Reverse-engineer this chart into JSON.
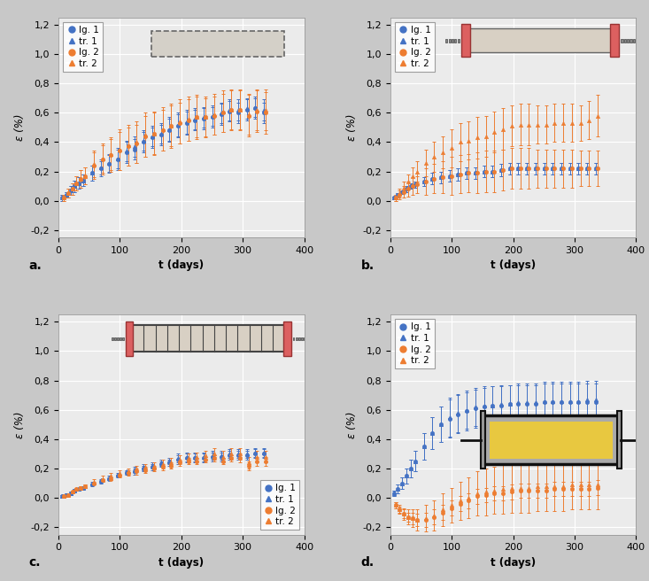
{
  "subplots": [
    "a.",
    "b.",
    "c.",
    "d."
  ],
  "blue_color": "#4472C4",
  "orange_color": "#ED7D31",
  "bg_color": "#EBEBEB",
  "grid_color": "#FFFFFF",
  "xlabel": "t (days)",
  "ylabel": "ε (%)",
  "xlim": [
    0,
    400
  ],
  "ylim": [
    -0.25,
    1.25
  ],
  "ytick_vals": [
    -0.2,
    0.0,
    0.2,
    0.4,
    0.6,
    0.8,
    1.0,
    1.2
  ],
  "ytick_labels": [
    "-0,2",
    "0,0",
    "0,2",
    "0,4",
    "0,6",
    "0,8",
    "1,0",
    "1,2"
  ],
  "xtick_vals": [
    0,
    100,
    200,
    300,
    400
  ],
  "xtick_labels": [
    "0",
    "100",
    "200",
    "300",
    "400"
  ],
  "panel_a": {
    "x": [
      7,
      14,
      21,
      28,
      35,
      42,
      56,
      70,
      84,
      98,
      112,
      126,
      140,
      154,
      168,
      182,
      196,
      210,
      224,
      238,
      252,
      266,
      280,
      294,
      308,
      322,
      336
    ],
    "lg1_y": [
      0.02,
      0.04,
      0.07,
      0.1,
      0.12,
      0.14,
      0.19,
      0.22,
      0.25,
      0.28,
      0.33,
      0.35,
      0.4,
      0.43,
      0.45,
      0.48,
      0.51,
      0.53,
      0.55,
      0.56,
      0.57,
      0.59,
      0.61,
      0.6,
      0.62,
      0.63,
      0.6
    ],
    "lg1_err": [
      0.02,
      0.02,
      0.03,
      0.04,
      0.04,
      0.04,
      0.05,
      0.05,
      0.06,
      0.07,
      0.07,
      0.07,
      0.07,
      0.07,
      0.07,
      0.08,
      0.08,
      0.08,
      0.07,
      0.07,
      0.07,
      0.07,
      0.07,
      0.07,
      0.07,
      0.07,
      0.07
    ],
    "tr1_y": [
      0.02,
      0.04,
      0.07,
      0.1,
      0.12,
      0.14,
      0.19,
      0.23,
      0.26,
      0.29,
      0.34,
      0.37,
      0.41,
      0.44,
      0.46,
      0.49,
      0.52,
      0.54,
      0.56,
      0.57,
      0.58,
      0.6,
      0.62,
      0.62,
      0.63,
      0.64,
      0.62
    ],
    "tr1_err": [
      0.02,
      0.02,
      0.03,
      0.04,
      0.04,
      0.04,
      0.05,
      0.05,
      0.06,
      0.07,
      0.07,
      0.07,
      0.07,
      0.07,
      0.07,
      0.08,
      0.08,
      0.08,
      0.07,
      0.07,
      0.07,
      0.07,
      0.07,
      0.07,
      0.07,
      0.07,
      0.07
    ],
    "lg2_y": [
      0.02,
      0.05,
      0.08,
      0.12,
      0.15,
      0.17,
      0.24,
      0.28,
      0.31,
      0.34,
      0.37,
      0.39,
      0.44,
      0.46,
      0.48,
      0.51,
      0.53,
      0.55,
      0.57,
      0.57,
      0.58,
      0.6,
      0.62,
      0.62,
      0.58,
      0.61,
      0.6
    ],
    "lg2_err": [
      0.02,
      0.03,
      0.04,
      0.05,
      0.06,
      0.06,
      0.09,
      0.1,
      0.11,
      0.13,
      0.13,
      0.13,
      0.14,
      0.14,
      0.14,
      0.14,
      0.14,
      0.14,
      0.14,
      0.13,
      0.13,
      0.13,
      0.13,
      0.13,
      0.14,
      0.14,
      0.14
    ],
    "tr2_y": [
      0.02,
      0.05,
      0.08,
      0.12,
      0.15,
      0.17,
      0.25,
      0.29,
      0.32,
      0.35,
      0.38,
      0.4,
      0.45,
      0.46,
      0.49,
      0.51,
      0.54,
      0.56,
      0.57,
      0.57,
      0.59,
      0.61,
      0.62,
      0.62,
      0.59,
      0.62,
      0.62
    ],
    "tr2_err": [
      0.02,
      0.03,
      0.04,
      0.05,
      0.06,
      0.06,
      0.09,
      0.1,
      0.11,
      0.14,
      0.14,
      0.14,
      0.15,
      0.15,
      0.15,
      0.15,
      0.15,
      0.15,
      0.15,
      0.14,
      0.14,
      0.14,
      0.14,
      0.14,
      0.14,
      0.14,
      0.14
    ]
  },
  "panel_b": {
    "x": [
      7,
      14,
      21,
      28,
      35,
      42,
      56,
      70,
      84,
      98,
      112,
      126,
      140,
      154,
      168,
      182,
      196,
      210,
      224,
      238,
      252,
      266,
      280,
      294,
      308,
      322,
      336
    ],
    "lg1_y": [
      0.02,
      0.04,
      0.06,
      0.08,
      0.1,
      0.11,
      0.13,
      0.15,
      0.16,
      0.17,
      0.18,
      0.19,
      0.19,
      0.2,
      0.2,
      0.21,
      0.22,
      0.22,
      0.22,
      0.22,
      0.22,
      0.22,
      0.22,
      0.22,
      0.22,
      0.22,
      0.22
    ],
    "lg1_err": [
      0.01,
      0.01,
      0.01,
      0.02,
      0.02,
      0.02,
      0.03,
      0.04,
      0.04,
      0.04,
      0.04,
      0.04,
      0.04,
      0.04,
      0.04,
      0.04,
      0.04,
      0.04,
      0.04,
      0.04,
      0.04,
      0.04,
      0.04,
      0.04,
      0.04,
      0.04,
      0.04
    ],
    "tr1_y": [
      0.02,
      0.04,
      0.06,
      0.08,
      0.1,
      0.11,
      0.13,
      0.15,
      0.16,
      0.17,
      0.18,
      0.19,
      0.19,
      0.2,
      0.2,
      0.21,
      0.22,
      0.22,
      0.22,
      0.22,
      0.22,
      0.22,
      0.22,
      0.22,
      0.22,
      0.22,
      0.22
    ],
    "tr1_err": [
      0.01,
      0.01,
      0.01,
      0.02,
      0.02,
      0.02,
      0.03,
      0.04,
      0.04,
      0.04,
      0.04,
      0.04,
      0.04,
      0.04,
      0.04,
      0.04,
      0.04,
      0.04,
      0.04,
      0.04,
      0.04,
      0.04,
      0.04,
      0.04,
      0.04,
      0.04,
      0.04
    ],
    "lg2_y": [
      0.02,
      0.04,
      0.06,
      0.08,
      0.1,
      0.11,
      0.13,
      0.15,
      0.16,
      0.17,
      0.18,
      0.19,
      0.19,
      0.2,
      0.2,
      0.21,
      0.22,
      0.22,
      0.22,
      0.22,
      0.22,
      0.22,
      0.22,
      0.22,
      0.22,
      0.22,
      0.22
    ],
    "lg2_err": [
      0.02,
      0.03,
      0.04,
      0.05,
      0.06,
      0.06,
      0.09,
      0.1,
      0.11,
      0.13,
      0.13,
      0.13,
      0.14,
      0.14,
      0.14,
      0.14,
      0.14,
      0.14,
      0.14,
      0.13,
      0.13,
      0.13,
      0.13,
      0.13,
      0.12,
      0.12,
      0.12
    ],
    "tr2_y": [
      0.02,
      0.05,
      0.09,
      0.13,
      0.17,
      0.2,
      0.26,
      0.3,
      0.33,
      0.36,
      0.4,
      0.41,
      0.43,
      0.44,
      0.47,
      0.49,
      0.51,
      0.52,
      0.52,
      0.52,
      0.52,
      0.53,
      0.53,
      0.53,
      0.53,
      0.55,
      0.58
    ],
    "tr2_err": [
      0.02,
      0.03,
      0.04,
      0.05,
      0.06,
      0.07,
      0.09,
      0.1,
      0.11,
      0.13,
      0.13,
      0.13,
      0.14,
      0.14,
      0.14,
      0.14,
      0.14,
      0.14,
      0.14,
      0.13,
      0.13,
      0.13,
      0.13,
      0.13,
      0.12,
      0.13,
      0.14
    ]
  },
  "panel_c": {
    "x": [
      7,
      14,
      21,
      28,
      35,
      42,
      56,
      70,
      84,
      98,
      112,
      126,
      140,
      154,
      168,
      182,
      196,
      210,
      224,
      238,
      252,
      266,
      280,
      294,
      308,
      322,
      336
    ],
    "lg1_y": [
      0.01,
      0.02,
      0.03,
      0.05,
      0.06,
      0.07,
      0.09,
      0.11,
      0.13,
      0.15,
      0.17,
      0.18,
      0.2,
      0.21,
      0.23,
      0.24,
      0.26,
      0.27,
      0.27,
      0.27,
      0.28,
      0.28,
      0.29,
      0.29,
      0.29,
      0.3,
      0.3
    ],
    "lg1_err": [
      0.01,
      0.01,
      0.01,
      0.01,
      0.01,
      0.01,
      0.01,
      0.01,
      0.01,
      0.01,
      0.01,
      0.02,
      0.02,
      0.02,
      0.02,
      0.02,
      0.03,
      0.03,
      0.03,
      0.03,
      0.03,
      0.03,
      0.03,
      0.03,
      0.03,
      0.03,
      0.03
    ],
    "tr1_y": [
      0.01,
      0.02,
      0.03,
      0.05,
      0.06,
      0.07,
      0.1,
      0.12,
      0.14,
      0.16,
      0.18,
      0.19,
      0.21,
      0.22,
      0.24,
      0.25,
      0.27,
      0.28,
      0.28,
      0.28,
      0.29,
      0.29,
      0.3,
      0.3,
      0.3,
      0.31,
      0.31
    ],
    "tr1_err": [
      0.01,
      0.01,
      0.01,
      0.01,
      0.01,
      0.01,
      0.01,
      0.01,
      0.01,
      0.01,
      0.01,
      0.02,
      0.02,
      0.02,
      0.02,
      0.02,
      0.03,
      0.03,
      0.03,
      0.03,
      0.03,
      0.03,
      0.03,
      0.03,
      0.03,
      0.03,
      0.03
    ],
    "lg2_y": [
      0.01,
      0.02,
      0.04,
      0.06,
      0.07,
      0.08,
      0.1,
      0.12,
      0.13,
      0.15,
      0.17,
      0.18,
      0.19,
      0.2,
      0.21,
      0.22,
      0.24,
      0.25,
      0.25,
      0.26,
      0.27,
      0.25,
      0.27,
      0.27,
      0.22,
      0.25,
      0.25
    ],
    "lg2_err": [
      0.01,
      0.01,
      0.01,
      0.01,
      0.01,
      0.01,
      0.01,
      0.01,
      0.01,
      0.01,
      0.02,
      0.02,
      0.02,
      0.02,
      0.02,
      0.02,
      0.02,
      0.02,
      0.02,
      0.02,
      0.02,
      0.02,
      0.02,
      0.03,
      0.03,
      0.03,
      0.03
    ],
    "tr2_y": [
      0.01,
      0.02,
      0.04,
      0.06,
      0.07,
      0.08,
      0.11,
      0.13,
      0.15,
      0.17,
      0.18,
      0.2,
      0.21,
      0.22,
      0.23,
      0.24,
      0.26,
      0.27,
      0.28,
      0.29,
      0.3,
      0.28,
      0.3,
      0.3,
      0.24,
      0.28,
      0.28
    ],
    "tr2_err": [
      0.01,
      0.01,
      0.01,
      0.01,
      0.01,
      0.01,
      0.02,
      0.02,
      0.02,
      0.02,
      0.02,
      0.02,
      0.02,
      0.02,
      0.03,
      0.03,
      0.03,
      0.03,
      0.03,
      0.03,
      0.04,
      0.04,
      0.04,
      0.04,
      0.04,
      0.04,
      0.04
    ]
  },
  "panel_d": {
    "x": [
      7,
      14,
      21,
      28,
      35,
      42,
      56,
      70,
      84,
      98,
      112,
      126,
      140,
      154,
      168,
      182,
      196,
      210,
      224,
      238,
      252,
      266,
      280,
      294,
      308,
      322,
      336
    ],
    "lg1_y": [
      0.03,
      0.06,
      0.1,
      0.15,
      0.2,
      0.25,
      0.35,
      0.44,
      0.5,
      0.54,
      0.57,
      0.59,
      0.61,
      0.62,
      0.63,
      0.63,
      0.64,
      0.64,
      0.64,
      0.64,
      0.65,
      0.65,
      0.65,
      0.65,
      0.65,
      0.65,
      0.65
    ],
    "lg1_err": [
      0.02,
      0.03,
      0.04,
      0.05,
      0.06,
      0.07,
      0.09,
      0.11,
      0.12,
      0.13,
      0.13,
      0.13,
      0.13,
      0.13,
      0.13,
      0.13,
      0.13,
      0.13,
      0.13,
      0.13,
      0.13,
      0.13,
      0.13,
      0.13,
      0.13,
      0.13,
      0.13
    ],
    "tr1_y": [
      0.03,
      0.06,
      0.1,
      0.15,
      0.2,
      0.25,
      0.35,
      0.44,
      0.5,
      0.55,
      0.58,
      0.6,
      0.62,
      0.63,
      0.63,
      0.64,
      0.64,
      0.65,
      0.65,
      0.65,
      0.66,
      0.66,
      0.66,
      0.66,
      0.66,
      0.67,
      0.67
    ],
    "tr1_err": [
      0.02,
      0.03,
      0.04,
      0.05,
      0.06,
      0.07,
      0.09,
      0.11,
      0.12,
      0.13,
      0.13,
      0.13,
      0.13,
      0.13,
      0.13,
      0.13,
      0.13,
      0.13,
      0.13,
      0.13,
      0.13,
      0.13,
      0.13,
      0.13,
      0.13,
      0.13,
      0.13
    ],
    "lg2_y": [
      -0.05,
      -0.08,
      -0.11,
      -0.13,
      -0.14,
      -0.15,
      -0.15,
      -0.13,
      -0.1,
      -0.07,
      -0.04,
      -0.02,
      0.01,
      0.02,
      0.03,
      0.03,
      0.04,
      0.05,
      0.05,
      0.05,
      0.05,
      0.06,
      0.06,
      0.06,
      0.06,
      0.06,
      0.07
    ],
    "lg2_err": [
      0.02,
      0.02,
      0.03,
      0.03,
      0.04,
      0.04,
      0.05,
      0.05,
      0.05,
      0.05,
      0.05,
      0.05,
      0.05,
      0.05,
      0.05,
      0.05,
      0.05,
      0.05,
      0.05,
      0.05,
      0.05,
      0.05,
      0.05,
      0.05,
      0.05,
      0.05,
      0.05
    ],
    "tr2_y": [
      -0.05,
      -0.08,
      -0.11,
      -0.13,
      -0.14,
      -0.15,
      -0.14,
      -0.12,
      -0.08,
      -0.05,
      -0.02,
      0.0,
      0.03,
      0.04,
      0.05,
      0.06,
      0.07,
      0.07,
      0.07,
      0.08,
      0.08,
      0.08,
      0.08,
      0.09,
      0.09,
      0.09,
      0.09
    ],
    "tr2_err": [
      0.02,
      0.03,
      0.04,
      0.05,
      0.06,
      0.07,
      0.09,
      0.1,
      0.11,
      0.12,
      0.13,
      0.14,
      0.15,
      0.16,
      0.16,
      0.17,
      0.17,
      0.17,
      0.17,
      0.17,
      0.17,
      0.17,
      0.17,
      0.17,
      0.17,
      0.17,
      0.17
    ]
  }
}
